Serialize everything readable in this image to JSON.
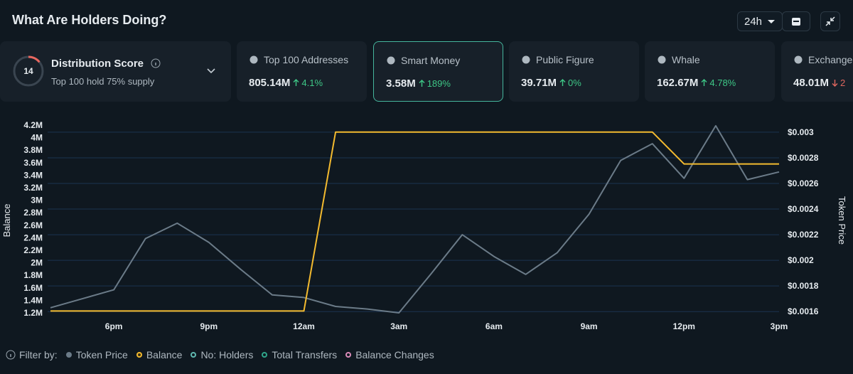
{
  "header": {
    "title": "What Are Holders Doing?",
    "range": "24h"
  },
  "distribution": {
    "title": "Distribution Score",
    "score": 14,
    "subtitle": "Top 100 hold 75% supply"
  },
  "cards": [
    {
      "label": "Top 100 Addresses",
      "value": "805.14M",
      "change": "4.1%",
      "direction": "up"
    },
    {
      "label": "Smart Money",
      "value": "3.58M",
      "change": "189%",
      "direction": "up",
      "selected": true
    },
    {
      "label": "Public Figure",
      "value": "39.71M",
      "change": "0%",
      "direction": "up"
    },
    {
      "label": "Whale",
      "value": "162.67M",
      "change": "4.78%",
      "direction": "up"
    },
    {
      "label": "Exchange",
      "value": "48.01M",
      "change": "2",
      "direction": "down"
    }
  ],
  "chart_data": {
    "type": "line",
    "categories": [
      null,
      null,
      "6pm",
      null,
      null,
      "9pm",
      null,
      null,
      "12am",
      null,
      null,
      "3am",
      null,
      null,
      "6am",
      null,
      null,
      "9am",
      null,
      null,
      "12pm",
      null,
      null,
      "3pm"
    ],
    "series": [
      {
        "name": "Token Price",
        "color": "#6b7b88",
        "axis": "y2",
        "values": [
          0.00163,
          0.0017,
          0.00177,
          0.00217,
          0.00229,
          0.00214,
          0.00193,
          0.00173,
          0.00171,
          0.00164,
          0.00162,
          0.00159,
          0.00189,
          0.0022,
          0.00203,
          0.00189,
          0.00206,
          0.00236,
          0.00278,
          0.00291,
          0.00264,
          0.00305,
          0.00263,
          0.00269
        ]
      },
      {
        "name": "Balance",
        "color": "#f3ba2f",
        "values": [
          1230000,
          1230000,
          1230000,
          1230000,
          1230000,
          1230000,
          1230000,
          1230000,
          1230000,
          4090000,
          4090000,
          4090000,
          4090000,
          4090000,
          4090000,
          4090000,
          4090000,
          4090000,
          4090000,
          4090000,
          3580000,
          3580000,
          3580000,
          3580000
        ]
      }
    ],
    "filter_label": "Filter by:",
    "inactive_filters": [
      {
        "name": "No: Holders",
        "color": "#5fb8b0"
      },
      {
        "name": "Total Transfers",
        "color": "#2fa68a"
      },
      {
        "name": "Balance Changes",
        "color": "#d98bb8"
      }
    ],
    "ylabel": "Balance",
    "y2label": "Token Price",
    "ylim": [
      1200000,
      4200000
    ],
    "yticks": [
      {
        "value": 1200000,
        "label": "1.2M"
      },
      {
        "value": 1400000,
        "label": "1.4M"
      },
      {
        "value": 1600000,
        "label": "1.6M"
      },
      {
        "value": 1800000,
        "label": "1.8M"
      },
      {
        "value": 2000000,
        "label": "2M"
      },
      {
        "value": 2200000,
        "label": "2.2M"
      },
      {
        "value": 2400000,
        "label": "2.4M"
      },
      {
        "value": 2600000,
        "label": "2.6M"
      },
      {
        "value": 2800000,
        "label": "2.8M"
      },
      {
        "value": 3000000,
        "label": "3M"
      },
      {
        "value": 3200000,
        "label": "3.2M"
      },
      {
        "value": 3400000,
        "label": "3.4M"
      },
      {
        "value": 3600000,
        "label": "3.6M"
      },
      {
        "value": 3800000,
        "label": "3.8M"
      },
      {
        "value": 4000000,
        "label": "4M"
      },
      {
        "value": 4200000,
        "label": "4.2M"
      }
    ],
    "y2lim": [
      0.00159,
      0.003055
    ],
    "y2ticks": [
      {
        "value": 0.0016,
        "label": "$0.0016"
      },
      {
        "value": 0.0018,
        "label": "$0.0018"
      },
      {
        "value": 0.002,
        "label": "$0.002"
      },
      {
        "value": 0.0022,
        "label": "$0.0022"
      },
      {
        "value": 0.0024,
        "label": "$0.0024"
      },
      {
        "value": 0.0026,
        "label": "$0.0026"
      },
      {
        "value": 0.0028,
        "label": "$0.0028"
      },
      {
        "value": 0.003,
        "label": "$0.003"
      }
    ],
    "grid": true
  }
}
